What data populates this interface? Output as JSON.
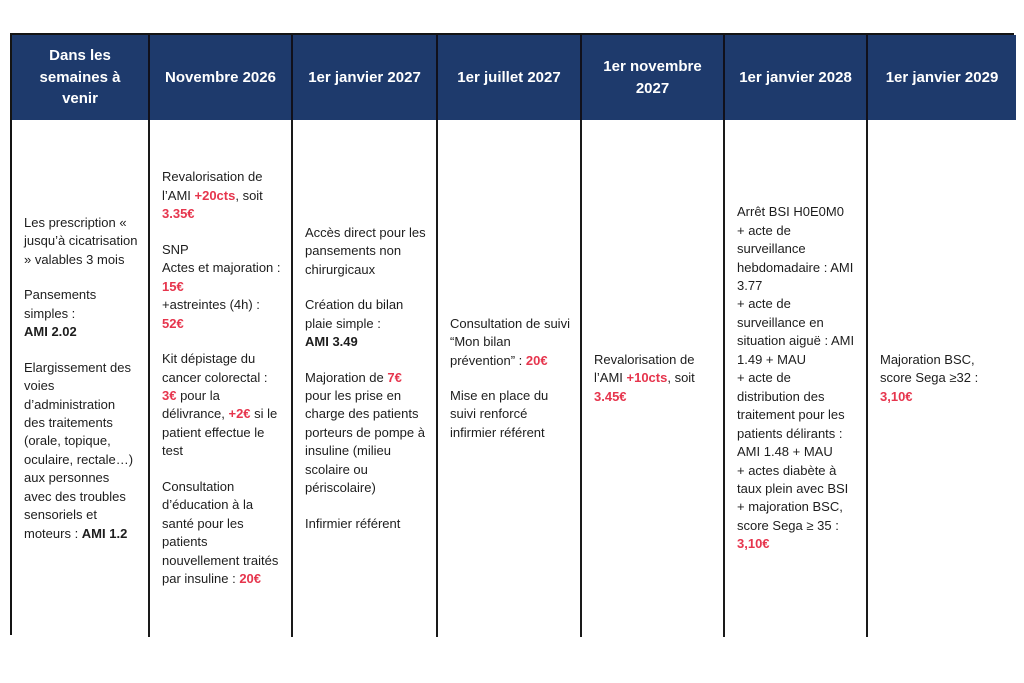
{
  "accent_colors": {
    "header_background": "#1e3a6c",
    "header_text": "#ffffff",
    "highlight_red": "#e6354d",
    "body_text": "#1d1d1d",
    "border": "#141414"
  },
  "table": {
    "headers": [
      "Dans les semaines à venir",
      "Novembre 2026",
      "1er janvier 2027",
      "1er juillet 2027",
      "1er novembre 2027",
      "1er janvier 2028",
      "1er janvier 2029"
    ],
    "columns": [
      {
        "paragraphs": [
          [
            {
              "t": "Les prescription « jusqu’à cicatrisation » valables 3 mois"
            }
          ],
          [
            {
              "t": "Pansements simples :\n"
            },
            {
              "t": "AMI 2.02",
              "s": "b"
            }
          ],
          [
            {
              "t": "Elargissement des voies d’administration des traitements (orale, topique, oculaire, rectale…) aux personnes avec des troubles sensoriels et moteurs : "
            },
            {
              "t": "AMI 1.2",
              "s": "b"
            }
          ]
        ]
      },
      {
        "paragraphs": [
          [
            {
              "t": "Revalorisation de l’AMI "
            },
            {
              "t": "+20cts",
              "s": "r"
            },
            {
              "t": ", soit "
            },
            {
              "t": "3.35€",
              "s": "r"
            }
          ],
          [
            {
              "t": "SNP\nActes et majoration : "
            },
            {
              "t": "15€",
              "s": "r"
            },
            {
              "t": "\n+astreintes (4h) : "
            },
            {
              "t": "52€",
              "s": "r"
            }
          ],
          [
            {
              "t": "Kit dépistage du cancer colorectal : "
            },
            {
              "t": "3€",
              "s": "r"
            },
            {
              "t": " pour la délivrance, "
            },
            {
              "t": "+2€",
              "s": "r"
            },
            {
              "t": " si le patient effectue le test"
            }
          ],
          [
            {
              "t": "Consultation d’éducation à la santé pour les patients nouvellement traités par insuline : "
            },
            {
              "t": "20€",
              "s": "r"
            }
          ]
        ]
      },
      {
        "paragraphs": [
          [
            {
              "t": "Accès direct pour les pansements non chirurgicaux"
            }
          ],
          [
            {
              "t": "Création du bilan plaie simple :\n"
            },
            {
              "t": "AMI 3.49",
              "s": "b"
            }
          ],
          [
            {
              "t": "Majoration de "
            },
            {
              "t": "7€",
              "s": "r"
            },
            {
              "t": " pour les prise en charge des patients porteurs de pompe à insuline (milieu scolaire ou périscolaire)"
            }
          ],
          [
            {
              "t": "Infirmier référent"
            }
          ]
        ]
      },
      {
        "paragraphs": [
          [
            {
              "t": "Consultation de suivi “Mon bilan prévention” : "
            },
            {
              "t": "20€",
              "s": "r"
            }
          ],
          [
            {
              "t": "Mise en place du suivi renforcé infirmier référent"
            }
          ]
        ]
      },
      {
        "paragraphs": [
          [
            {
              "t": "Revalorisation de l’AMI "
            },
            {
              "t": "+10cts",
              "s": "r"
            },
            {
              "t": ", soit "
            },
            {
              "t": "3.45€",
              "s": "r"
            }
          ]
        ]
      },
      {
        "paragraphs": [
          [
            {
              "t": "Arrêt BSI H0E0M0\n+ acte de surveillance hebdomadaire : AMI 3.77\n+ acte de surveillance en situation aiguë : AMI 1.49 + MAU\n+ acte de distribution des traitement pour les patients délirants : AMI 1.48 + MAU\n+ actes diabète à taux plein avec BSI\n+ majoration BSC, score Sega ≥ 35 :\n"
            },
            {
              "t": "3,10€",
              "s": "r"
            }
          ]
        ]
      },
      {
        "paragraphs": [
          [
            {
              "t": "Majoration BSC, score Sega ≥32 :\n"
            },
            {
              "t": "3,10€",
              "s": "r"
            }
          ]
        ]
      }
    ]
  }
}
